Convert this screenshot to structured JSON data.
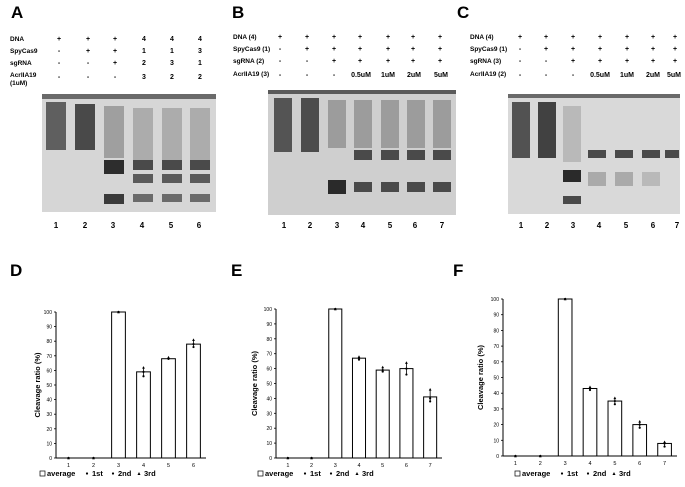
{
  "panels": {
    "A": {
      "letter": "A",
      "rows": [
        {
          "label": "DNA",
          "cells": [
            "+",
            "+",
            "+",
            "4",
            "4",
            "4"
          ]
        },
        {
          "label": "SpyCas9",
          "cells": [
            "-",
            "+",
            "+",
            "1",
            "1",
            "3"
          ]
        },
        {
          "label": "sgRNA",
          "cells": [
            "-",
            "-",
            "+",
            "2",
            "3",
            "1"
          ]
        },
        {
          "label": "AcrIIA19",
          "cells": [
            "-",
            "-",
            "-",
            "3",
            "2",
            "2"
          ]
        },
        {
          "label": "(1uM)",
          "cells": []
        }
      ],
      "lanes": [
        "1",
        "2",
        "3",
        "4",
        "5",
        "6"
      ]
    },
    "B": {
      "letter": "B",
      "rows": [
        {
          "label": "DNA (4)",
          "cells": [
            "+",
            "+",
            "+",
            "+",
            "+",
            "+",
            "+"
          ]
        },
        {
          "label": "SpyCas9 (1)",
          "cells": [
            "-",
            "+",
            "+",
            "+",
            "+",
            "+",
            "+"
          ]
        },
        {
          "label": "sgRNA (2)",
          "cells": [
            "-",
            "-",
            "+",
            "+",
            "+",
            "+",
            "+"
          ]
        },
        {
          "label": "AcrIIA19 (3)",
          "cells": [
            "-",
            "-",
            "-",
            "0.5uM",
            "1uM",
            "2uM",
            "5uM"
          ]
        }
      ],
      "lanes": [
        "1",
        "2",
        "3",
        "4",
        "5",
        "6",
        "7"
      ]
    },
    "C": {
      "letter": "C",
      "rows": [
        {
          "label": "DNA (4)",
          "cells": [
            "+",
            "+",
            "+",
            "+",
            "+",
            "+",
            "+"
          ]
        },
        {
          "label": "SpyCas9 (1)",
          "cells": [
            "-",
            "+",
            "+",
            "+",
            "+",
            "+",
            "+"
          ]
        },
        {
          "label": "sgRNA (3)",
          "cells": [
            "-",
            "-",
            "+",
            "+",
            "+",
            "+",
            "+"
          ]
        },
        {
          "label": "AcrIIA19 (2)",
          "cells": [
            "-",
            "-",
            "-",
            "0.5uM",
            "1uM",
            "2uM",
            "5uM"
          ]
        }
      ],
      "lanes": [
        "1",
        "2",
        "3",
        "4",
        "5",
        "6",
        "7"
      ]
    },
    "D": {
      "letter": "D"
    },
    "E": {
      "letter": "E"
    },
    "F": {
      "letter": "F"
    }
  },
  "chart_data": [
    {
      "panel": "D",
      "type": "bar",
      "categories": [
        "1",
        "2",
        "3",
        "4",
        "5",
        "6"
      ],
      "series": [
        {
          "name": "average",
          "values": [
            0,
            0,
            100,
            59,
            68,
            78
          ]
        },
        {
          "name": "1st",
          "values": [
            0,
            0,
            100,
            56,
            68,
            76
          ]
        },
        {
          "name": "2nd",
          "values": [
            0,
            0,
            100,
            59,
            68,
            78
          ]
        },
        {
          "name": "3rd",
          "values": [
            0,
            0,
            100,
            62,
            69,
            81
          ]
        }
      ],
      "ylabel": "Cleavage ratio (%)",
      "yticks": [
        "0",
        "10",
        "20",
        "30",
        "40",
        "50",
        "60",
        "70",
        "80",
        "90",
        "100"
      ],
      "ylim": [
        0,
        100
      ],
      "legend": [
        "average",
        "1st",
        "2nd",
        "3rd"
      ],
      "legend_position": "bottom"
    },
    {
      "panel": "E",
      "type": "bar",
      "categories": [
        "1",
        "2",
        "3",
        "4",
        "5",
        "6",
        "7"
      ],
      "series": [
        {
          "name": "average",
          "values": [
            0,
            0,
            100,
            67,
            59,
            60,
            41
          ]
        },
        {
          "name": "1st",
          "values": [
            0,
            0,
            100,
            66,
            58,
            56,
            38
          ]
        },
        {
          "name": "2nd",
          "values": [
            0,
            0,
            100,
            67,
            59,
            60,
            40
          ]
        },
        {
          "name": "3rd",
          "values": [
            0,
            0,
            100,
            68,
            61,
            64,
            46
          ]
        }
      ],
      "ylabel": "Cleavage ratio (%)",
      "yticks": [
        "0",
        "10",
        "20",
        "30",
        "40",
        "50",
        "60",
        "70",
        "80",
        "90",
        "100"
      ],
      "ylim": [
        0,
        100
      ],
      "legend": [
        "average",
        "1st",
        "2nd",
        "3rd"
      ],
      "legend_position": "bottom"
    },
    {
      "panel": "F",
      "type": "bar",
      "categories": [
        "1",
        "2",
        "3",
        "4",
        "5",
        "6",
        "7"
      ],
      "series": [
        {
          "name": "average",
          "values": [
            0,
            0,
            100,
            43,
            35,
            20,
            8
          ]
        },
        {
          "name": "1st",
          "values": [
            0,
            0,
            100,
            42,
            33,
            18,
            6
          ]
        },
        {
          "name": "2nd",
          "values": [
            0,
            0,
            100,
            43,
            35,
            20,
            8
          ]
        },
        {
          "name": "3rd",
          "values": [
            0,
            0,
            100,
            44,
            37,
            22,
            9
          ]
        }
      ],
      "ylabel": "Cleavage ratio (%)",
      "yticks": [
        "0",
        "10",
        "20",
        "30",
        "40",
        "50",
        "60",
        "70",
        "80",
        "90",
        "100"
      ],
      "ylim": [
        0,
        100
      ],
      "legend": [
        "average",
        "1st",
        "2nd",
        "3rd"
      ],
      "legend_position": "bottom"
    }
  ]
}
